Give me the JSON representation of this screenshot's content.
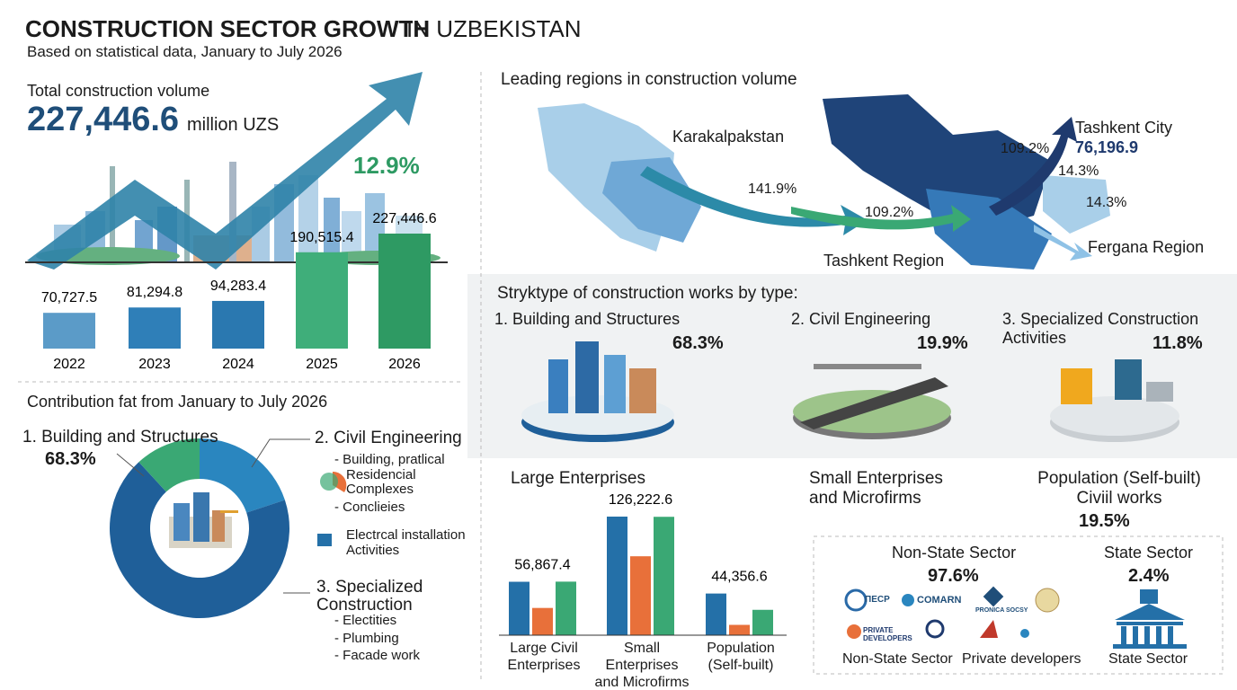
{
  "header": {
    "title_bold": "CONSTRUCTION SECTOR GROWTH",
    "title_rest": "IN UZBEKISTAN",
    "subtitle": "Based on statistical data, January to July 2026"
  },
  "total": {
    "label": "Total construction volume",
    "value": "227,446.6",
    "unit": "million UZS",
    "growth": "12.9%"
  },
  "regions": {
    "title": "Leading regions in construction volume",
    "labels": [
      "Karakalpakstan",
      "141.9%",
      "109.2%",
      "Tashkent Region",
      "109.2%",
      "Tashkent City",
      "76,196.9",
      "14.3%",
      "14.3%",
      "Fergana Region"
    ]
  },
  "types": {
    "title": "Stryktype of construction works by type:",
    "items": [
      {
        "name": "1. Building and Structures",
        "share": "68.3%"
      },
      {
        "name": "2. Civil Engineering",
        "share": "19.9%"
      },
      {
        "name": "3. Specialized Construction Activities",
        "share": "11.8%"
      }
    ]
  },
  "contribution": {
    "title": "Contribution fat from January to July 2026",
    "item1": "1. Building and Structures",
    "item2": "2. Civil Engineering",
    "item2_sub": [
      "- Building, pratlical",
      "Residencial Complexes",
      "- Conclieies",
      "Electrcal installation Activities"
    ],
    "item3": "3. Specialized Construction",
    "item3_sub": [
      "- Electities",
      "- Plumbing",
      "- Facade work"
    ]
  },
  "enterprise_headings": [
    "Large Enterprises",
    "Small Enterprises and Microfirms",
    "Population (Self-built) Civiil works",
    "19.5%"
  ],
  "sectors": {
    "non_state": "Non-State Sector",
    "non_state_share": "97.6%",
    "state": "State Sector",
    "state_share": "2.4%",
    "logos": [
      "ПЕСР",
      "COMARN",
      "PRONICA SOCSY",
      "PRIVATE DEVELOPERS"
    ],
    "captions": [
      "Non-State Sector",
      "Private developers",
      "State Sector"
    ]
  },
  "chart_data": [
    {
      "type": "bar",
      "categories": [
        "2022",
        "2023",
        "2024",
        "2025",
        "2026"
      ],
      "values": [
        70727.5,
        81294.8,
        94283.4,
        190515.4,
        227446.6
      ],
      "value_labels": [
        "70,727.5",
        "81,294.8",
        "94,283.4",
        "190,515.4",
        "227,446.6"
      ],
      "colors": [
        "#5b9bc8",
        "#2f7fb8",
        "#2a78b0",
        "#3fae7a",
        "#2e9a63"
      ]
    },
    {
      "type": "pie",
      "categories": [
        "Building and Structures",
        "Civil Engineering",
        "Specialized Construction"
      ],
      "values": [
        68.3,
        19.9,
        11.8
      ],
      "value_labels": [
        "68.3%",
        null,
        null
      ],
      "colors": [
        "#1f5f99",
        "#2a86bf",
        "#3aa874"
      ]
    },
    {
      "type": "grouped_bar",
      "categories": [
        "Large  Civil Enterprises",
        "Small Enterprises and Microfirms",
        "Population (Self-built)"
      ],
      "series": [
        {
          "color": "#2470a8",
          "values": [
            56867.4,
            126222.6,
            44356.6
          ],
          "value_labels": [
            "56,867.4",
            "126,222.6",
            "44,356.6"
          ]
        },
        {
          "color": "#e8703a",
          "values": [
            29000,
            84000,
            11000
          ]
        },
        {
          "color": "#3aa874",
          "values": [
            57000,
            126000,
            27000
          ]
        }
      ]
    }
  ]
}
